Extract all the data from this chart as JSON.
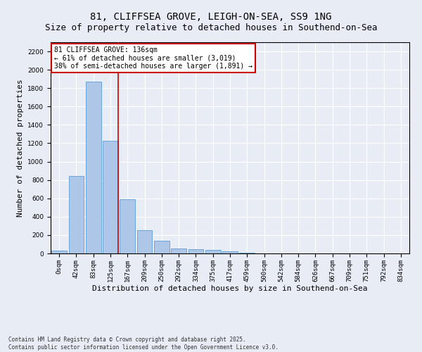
{
  "title1": "81, CLIFFSEA GROVE, LEIGH-ON-SEA, SS9 1NG",
  "title2": "Size of property relative to detached houses in Southend-on-Sea",
  "xlabel": "Distribution of detached houses by size in Southend-on-Sea",
  "ylabel": "Number of detached properties",
  "bar_labels": [
    "0sqm",
    "42sqm",
    "83sqm",
    "125sqm",
    "167sqm",
    "209sqm",
    "250sqm",
    "292sqm",
    "334sqm",
    "375sqm",
    "417sqm",
    "459sqm",
    "500sqm",
    "542sqm",
    "584sqm",
    "626sqm",
    "667sqm",
    "709sqm",
    "751sqm",
    "792sqm",
    "834sqm"
  ],
  "bar_values": [
    30,
    840,
    1870,
    1230,
    590,
    255,
    140,
    55,
    45,
    35,
    20,
    10,
    0,
    0,
    0,
    0,
    0,
    0,
    0,
    0,
    0
  ],
  "bar_color": "#aec6e8",
  "bar_edge_color": "#5b9bd5",
  "vline_x": 3.45,
  "vline_color": "#cc0000",
  "annotation_text": "81 CLIFFSEA GROVE: 136sqm\n← 61% of detached houses are smaller (3,019)\n38% of semi-detached houses are larger (1,891) →",
  "annotation_box_color": "#ffffff",
  "annotation_border_color": "#cc0000",
  "ylim": [
    0,
    2300
  ],
  "yticks": [
    0,
    200,
    400,
    600,
    800,
    1000,
    1200,
    1400,
    1600,
    1800,
    2000,
    2200
  ],
  "bg_color": "#e8edf5",
  "footnote": "Contains HM Land Registry data © Crown copyright and database right 2025.\nContains public sector information licensed under the Open Government Licence v3.0.",
  "title_fontsize": 10,
  "subtitle_fontsize": 9,
  "axis_label_fontsize": 8,
  "tick_fontsize": 6.5,
  "footnote_fontsize": 5.5
}
